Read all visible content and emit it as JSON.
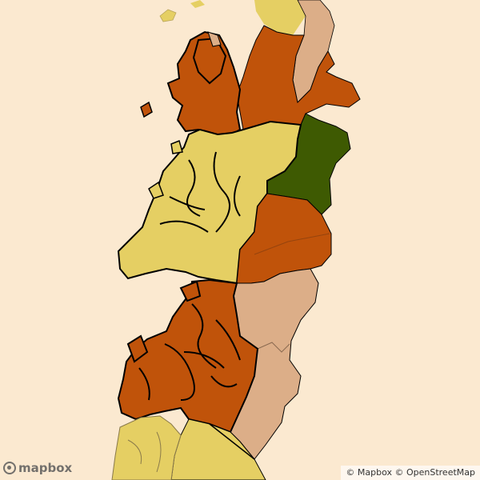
{
  "map": {
    "colors": {
      "background": "#fbe9d0",
      "orange": "#c0530a",
      "yellow": "#e5cf63",
      "tan": "#dcae88",
      "green": "#3e5a02",
      "border": "#000000"
    },
    "regions": [
      {
        "name": "region-north-orange",
        "color": "orange"
      },
      {
        "name": "region-north-tan",
        "color": "tan"
      },
      {
        "name": "region-green",
        "color": "green"
      },
      {
        "name": "region-central-yellow",
        "color": "yellow"
      },
      {
        "name": "region-central-orange",
        "color": "orange"
      },
      {
        "name": "region-south-tan",
        "color": "tan"
      },
      {
        "name": "region-south-orange",
        "color": "orange"
      },
      {
        "name": "region-south-yellow",
        "color": "yellow"
      }
    ]
  },
  "attribution": {
    "mapbox": "© Mapbox",
    "osm": "© OpenStreetMap"
  },
  "logo": {
    "text": "mapbox"
  }
}
